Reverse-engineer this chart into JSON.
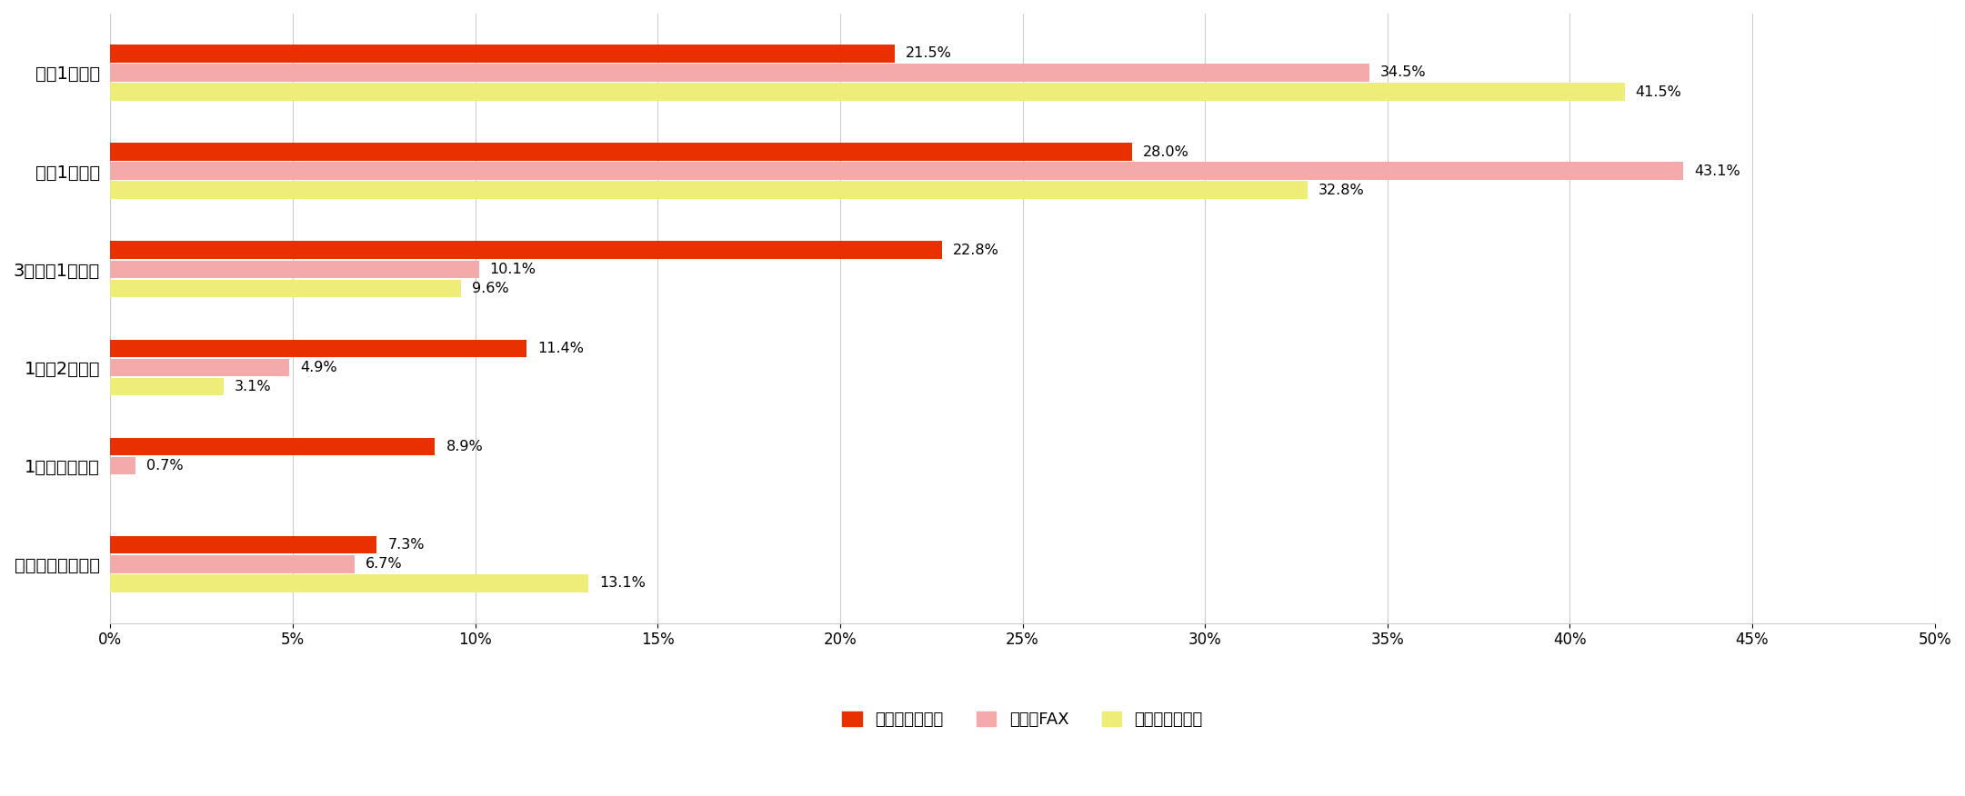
{
  "categories": [
    "週に1回以上",
    "月に1回以上",
    "3ヶ月に1回以上",
    "1年に2回程度",
    "1年に一回程度",
    "あまり連絡しない"
  ],
  "series": {
    "直接会いに行く": [
      21.5,
      28.0,
      22.8,
      11.4,
      8.9,
      7.3
    ],
    "電話・FAX": [
      34.5,
      43.1,
      10.1,
      4.9,
      0.7,
      6.7
    ],
    "インターネット": [
      41.5,
      32.8,
      9.6,
      3.1,
      0.0,
      13.1
    ]
  },
  "colors": {
    "直接会いに行く": "#E83000",
    "電話・FAX": "#F4AAAA",
    "インターネット": "#EDED77"
  },
  "xlim": [
    0,
    50
  ],
  "xticks": [
    0,
    5,
    10,
    15,
    20,
    25,
    30,
    35,
    40,
    45,
    50
  ],
  "xtick_labels": [
    "0%",
    "5%",
    "10%",
    "15%",
    "20%",
    "25%",
    "30%",
    "35%",
    "40%",
    "45%",
    "50%"
  ],
  "bar_height": 0.18,
  "bar_gap": 0.015,
  "label_fontsize": 11.5,
  "tick_fontsize": 12,
  "legend_fontsize": 13,
  "background_color": "#FFFFFF",
  "grid_color": "#CCCCCC",
  "category_fontsize": 14
}
